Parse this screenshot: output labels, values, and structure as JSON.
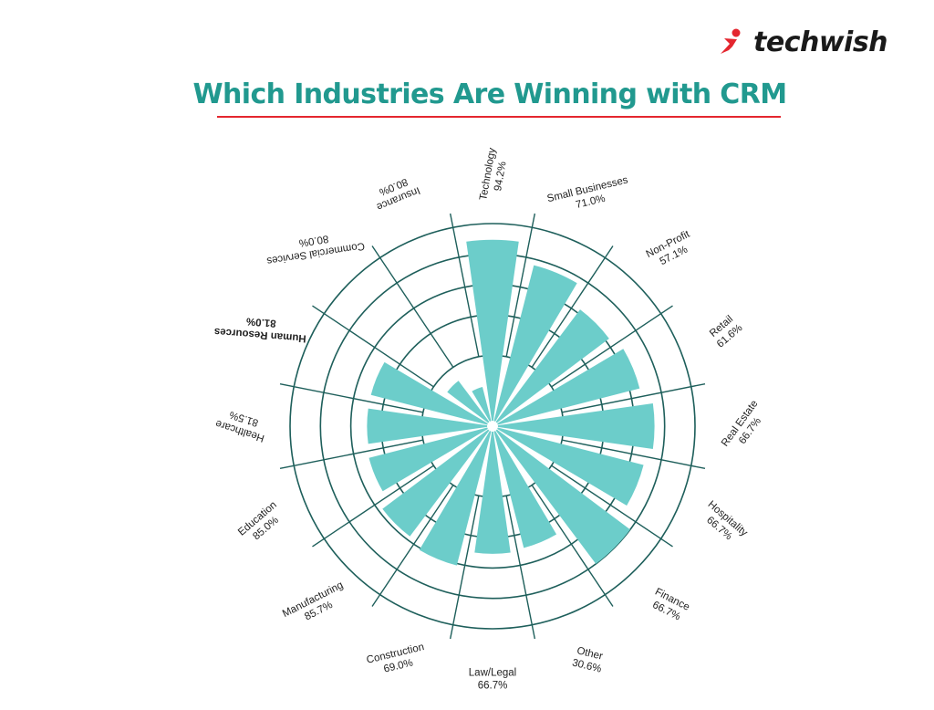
{
  "brand": {
    "name": "techwish",
    "accent": "#e4262f"
  },
  "title": "Which Industries Are Winning with CRM",
  "colors": {
    "title": "#21998f",
    "bar": "#6ccdca",
    "grid": "#1e5f5b",
    "underline": "#e4262f"
  },
  "chart_data": {
    "type": "polar-bar",
    "title": "Which Industries Are Winning with CRM",
    "unit": "%",
    "categories": [
      "Technology",
      "Small Businesses",
      "Non-Profit",
      "Retail",
      "Real Estate",
      "Hospitality",
      "Finance",
      "Other",
      "Law/Legal",
      "Construction",
      "Manufacturing",
      "Education",
      "Healthcare",
      "Human Resources",
      "Commercial Services",
      "Insurance"
    ],
    "value_labels": [
      "94.2%",
      "71.0%",
      "57.1%",
      "61.6%",
      "66.7%",
      "66.7%",
      "66.7%",
      "30.6%",
      "66.7%",
      "69.0%",
      "85.7%",
      "85.0%",
      "81.5%",
      "81.0%",
      "80.0%",
      "80.0%"
    ],
    "drawn_length": [
      0.92,
      0.82,
      0.72,
      0.75,
      0.8,
      0.77,
      0.85,
      0.62,
      0.63,
      0.71,
      0.68,
      0.63,
      0.62,
      0.62,
      0.28,
      0.2
    ],
    "grid": true
  }
}
